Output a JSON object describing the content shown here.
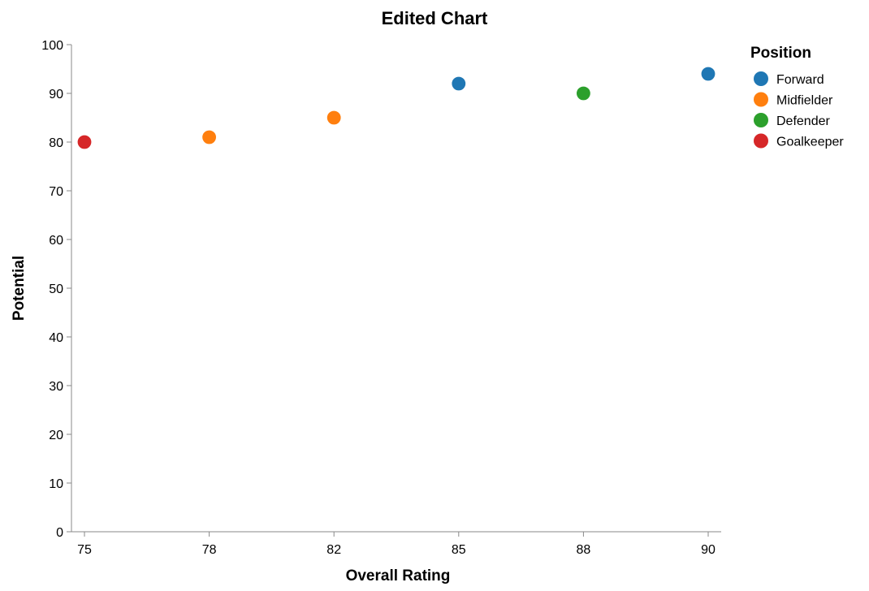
{
  "chart_data": {
    "type": "scatter",
    "title": "Edited Chart",
    "xlabel": "Overall Rating",
    "ylabel": "Potential",
    "x_ticks": [
      "75",
      "78",
      "82",
      "85",
      "88",
      "90"
    ],
    "y_ticks": [
      0,
      10,
      20,
      30,
      40,
      50,
      60,
      70,
      80,
      90,
      100
    ],
    "ylim": [
      0,
      100
    ],
    "grid": false,
    "legend": {
      "title": "Position",
      "placement": "top-right",
      "entries": [
        {
          "label": "Forward",
          "color": "#1f77b4"
        },
        {
          "label": "Midfielder",
          "color": "#ff7f0e"
        },
        {
          "label": "Defender",
          "color": "#2ca02c"
        },
        {
          "label": "Goalkeeper",
          "color": "#d62728"
        }
      ]
    },
    "points": [
      {
        "x": "75",
        "y": 80,
        "position": "Goalkeeper"
      },
      {
        "x": "78",
        "y": 81,
        "position": "Midfielder"
      },
      {
        "x": "82",
        "y": 85,
        "position": "Midfielder"
      },
      {
        "x": "85",
        "y": 92,
        "position": "Forward"
      },
      {
        "x": "88",
        "y": 90,
        "position": "Defender"
      },
      {
        "x": "90",
        "y": 94,
        "position": "Forward"
      }
    ]
  }
}
